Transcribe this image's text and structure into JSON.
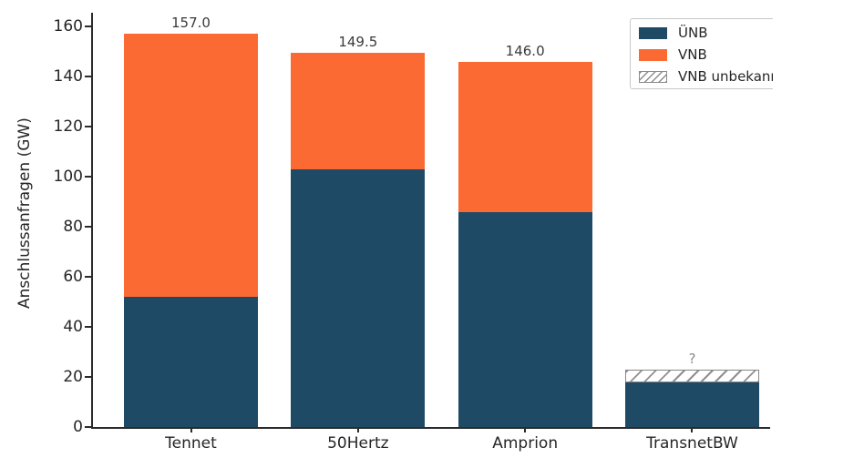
{
  "chart_data": {
    "type": "bar",
    "stacked": true,
    "title": "",
    "xlabel": "",
    "ylabel": "Anschlussanfragen (GW)",
    "ylim": [
      0,
      160
    ],
    "ytick_step": 20,
    "grid": false,
    "categories": [
      "Tennet",
      "50Hertz",
      "Amprion",
      "TransnetBW"
    ],
    "series": [
      {
        "name": "ÜNB",
        "style": "solid",
        "color": "#1e4a66",
        "values": [
          52,
          103,
          86,
          18
        ]
      },
      {
        "name": "VNB",
        "style": "solid",
        "color": "#fc6a33",
        "values": [
          105,
          46.5,
          60,
          0
        ]
      },
      {
        "name": "VNB unbekannt",
        "style": "hatched",
        "color": "#ffffff",
        "hatch_color": "#8c8c8c",
        "values": [
          0,
          0,
          0,
          5
        ]
      }
    ],
    "bar_total_labels": [
      {
        "text": "157.0",
        "color": "#3a3a3a"
      },
      {
        "text": "149.5",
        "color": "#3a3a3a"
      },
      {
        "text": "146.0",
        "color": "#3a3a3a"
      },
      {
        "text": "?",
        "color": "#8a8a8a"
      }
    ],
    "legend": {
      "position": "upper right",
      "entries": [
        {
          "label": "ÜNB",
          "swatch": "solid",
          "color": "#1e4a66"
        },
        {
          "label": "VNB",
          "swatch": "solid",
          "color": "#fc6a33"
        },
        {
          "label": "VNB unbekannt",
          "swatch": "hatched",
          "color": "#ffffff"
        }
      ]
    },
    "colors": {
      "axis": "#2b2b2b",
      "tick_labels": "#262626",
      "background": "#ffffff"
    }
  }
}
